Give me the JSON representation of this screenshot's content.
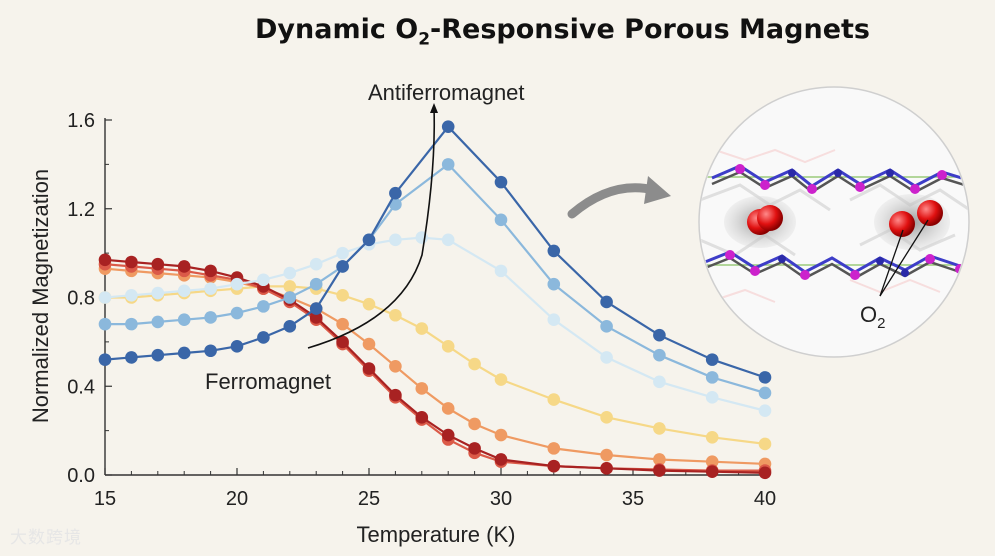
{
  "title": {
    "main": "Dynamic O",
    "sub": "2",
    "rest": "-Responsive Porous Magnets"
  },
  "chart_data": {
    "type": "line",
    "xlabel": "Temperature (K)",
    "ylabel": "Normalized Magnetization",
    "xlim": [
      15,
      40
    ],
    "ylim": [
      0.0,
      1.6
    ],
    "xticks": [
      "15",
      "20",
      "25",
      "30",
      "35",
      "40"
    ],
    "yticks": [
      "0.0",
      "0.4",
      "0.8",
      "1.2",
      "1.6"
    ],
    "series": [
      {
        "name": "series-dark-blue",
        "color": "#3a66a8",
        "points": [
          [
            15,
            0.52
          ],
          [
            16,
            0.53
          ],
          [
            17,
            0.54
          ],
          [
            18,
            0.55
          ],
          [
            19,
            0.56
          ],
          [
            20,
            0.58
          ],
          [
            21,
            0.62
          ],
          [
            22,
            0.67
          ],
          [
            23,
            0.75
          ],
          [
            24,
            0.94
          ],
          [
            25,
            1.06
          ],
          [
            26,
            1.27
          ],
          [
            28,
            1.57
          ],
          [
            30,
            1.32
          ],
          [
            32,
            1.01
          ],
          [
            34,
            0.78
          ],
          [
            36,
            0.63
          ],
          [
            38,
            0.52
          ],
          [
            40,
            0.44
          ]
        ]
      },
      {
        "name": "series-mid-blue",
        "color": "#8bb8dc",
        "points": [
          [
            15,
            0.68
          ],
          [
            16,
            0.68
          ],
          [
            17,
            0.69
          ],
          [
            18,
            0.7
          ],
          [
            19,
            0.71
          ],
          [
            20,
            0.73
          ],
          [
            21,
            0.76
          ],
          [
            22,
            0.8
          ],
          [
            23,
            0.86
          ],
          [
            24,
            0.94
          ],
          [
            25,
            1.06
          ],
          [
            26,
            1.22
          ],
          [
            28,
            1.4
          ],
          [
            30,
            1.15
          ],
          [
            32,
            0.86
          ],
          [
            34,
            0.67
          ],
          [
            36,
            0.54
          ],
          [
            38,
            0.44
          ],
          [
            40,
            0.37
          ]
        ]
      },
      {
        "name": "series-light-blue",
        "color": "#d4e8f3",
        "points": [
          [
            15,
            0.8
          ],
          [
            16,
            0.81
          ],
          [
            17,
            0.82
          ],
          [
            18,
            0.83
          ],
          [
            19,
            0.84
          ],
          [
            20,
            0.86
          ],
          [
            21,
            0.88
          ],
          [
            22,
            0.91
          ],
          [
            23,
            0.95
          ],
          [
            24,
            1.0
          ],
          [
            25,
            1.04
          ],
          [
            26,
            1.06
          ],
          [
            27,
            1.07
          ],
          [
            28,
            1.06
          ],
          [
            30,
            0.92
          ],
          [
            32,
            0.7
          ],
          [
            34,
            0.53
          ],
          [
            36,
            0.42
          ],
          [
            38,
            0.35
          ],
          [
            40,
            0.29
          ]
        ]
      },
      {
        "name": "series-yellow",
        "color": "#f6d887",
        "points": [
          [
            15,
            0.8
          ],
          [
            16,
            0.8
          ],
          [
            17,
            0.81
          ],
          [
            18,
            0.82
          ],
          [
            19,
            0.83
          ],
          [
            20,
            0.84
          ],
          [
            21,
            0.85
          ],
          [
            22,
            0.85
          ],
          [
            23,
            0.84
          ],
          [
            24,
            0.81
          ],
          [
            25,
            0.77
          ],
          [
            26,
            0.72
          ],
          [
            27,
            0.66
          ],
          [
            28,
            0.58
          ],
          [
            29,
            0.5
          ],
          [
            30,
            0.43
          ],
          [
            32,
            0.34
          ],
          [
            34,
            0.26
          ],
          [
            36,
            0.21
          ],
          [
            38,
            0.17
          ],
          [
            40,
            0.14
          ]
        ]
      },
      {
        "name": "series-orange",
        "color": "#ef9a62",
        "points": [
          [
            15,
            0.93
          ],
          [
            16,
            0.92
          ],
          [
            17,
            0.91
          ],
          [
            18,
            0.9
          ],
          [
            19,
            0.89
          ],
          [
            20,
            0.87
          ],
          [
            21,
            0.84
          ],
          [
            22,
            0.8
          ],
          [
            23,
            0.75
          ],
          [
            24,
            0.68
          ],
          [
            25,
            0.59
          ],
          [
            26,
            0.49
          ],
          [
            27,
            0.39
          ],
          [
            28,
            0.3
          ],
          [
            29,
            0.23
          ],
          [
            30,
            0.18
          ],
          [
            32,
            0.12
          ],
          [
            34,
            0.09
          ],
          [
            36,
            0.07
          ],
          [
            38,
            0.06
          ],
          [
            40,
            0.05
          ]
        ]
      },
      {
        "name": "series-red",
        "color": "#db5a48",
        "points": [
          [
            15,
            0.95
          ],
          [
            16,
            0.94
          ],
          [
            17,
            0.93
          ],
          [
            18,
            0.92
          ],
          [
            19,
            0.9
          ],
          [
            20,
            0.88
          ],
          [
            21,
            0.84
          ],
          [
            22,
            0.78
          ],
          [
            23,
            0.7
          ],
          [
            24,
            0.59
          ],
          [
            25,
            0.47
          ],
          [
            26,
            0.35
          ],
          [
            27,
            0.25
          ],
          [
            28,
            0.16
          ],
          [
            29,
            0.1
          ],
          [
            30,
            0.06
          ],
          [
            32,
            0.04
          ],
          [
            34,
            0.03
          ],
          [
            36,
            0.025
          ],
          [
            38,
            0.02
          ],
          [
            40,
            0.02
          ]
        ]
      },
      {
        "name": "series-dark-red",
        "color": "#a82222",
        "points": [
          [
            15,
            0.97
          ],
          [
            16,
            0.96
          ],
          [
            17,
            0.95
          ],
          [
            18,
            0.94
          ],
          [
            19,
            0.92
          ],
          [
            20,
            0.89
          ],
          [
            21,
            0.85
          ],
          [
            22,
            0.79
          ],
          [
            23,
            0.71
          ],
          [
            24,
            0.6
          ],
          [
            25,
            0.48
          ],
          [
            26,
            0.36
          ],
          [
            27,
            0.26
          ],
          [
            28,
            0.18
          ],
          [
            29,
            0.12
          ],
          [
            30,
            0.07
          ],
          [
            32,
            0.04
          ],
          [
            34,
            0.03
          ],
          [
            36,
            0.02
          ],
          [
            38,
            0.015
          ],
          [
            40,
            0.01
          ]
        ]
      }
    ],
    "annotations": {
      "antiferro": "Antiferromagnet",
      "ferro": "Ferromagnet",
      "o2_main": "O",
      "o2_sub": "2"
    }
  },
  "watermark": "大数跨境"
}
